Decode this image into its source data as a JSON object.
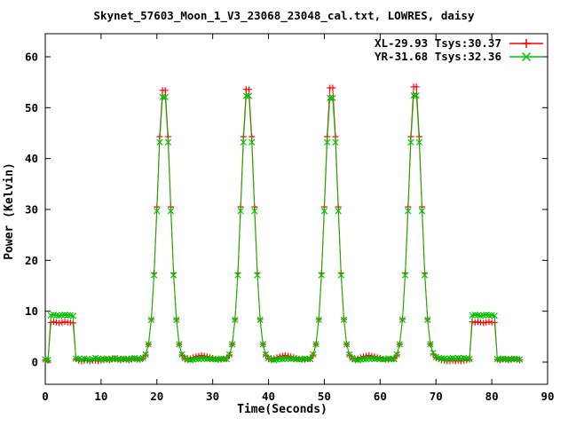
{
  "window": {
    "description": "gnuplot radio telescope calibration plot"
  },
  "chart_data": {
    "type": "line",
    "title": "Skynet_57603_Moon_1_V3_23068_23048_cal.txt, LOWRES, daisy",
    "xlabel": "Time(Seconds)",
    "ylabel": "Power (Kelvin)",
    "xlim": [
      0,
      90
    ],
    "ylim": [
      -4.36,
      64.53
    ],
    "xticks": [
      0,
      10,
      20,
      30,
      40,
      50,
      60,
      70,
      80,
      90
    ],
    "yticks": [
      0,
      10,
      20,
      30,
      40,
      50,
      60
    ],
    "grid": false,
    "legend_position": "top-right-inside",
    "background_color": "#ffffff",
    "axis_color": "#000000",
    "t_start": 0.0,
    "t_step": 0.5,
    "series": [
      {
        "name": "XL-29.93 Tsys:30.37",
        "color": "#ff0000",
        "marker": "plus",
        "values": [
          0.4,
          0.3,
          7.8,
          7.9,
          7.8,
          7.7,
          7.8,
          7.9,
          7.8,
          7.8,
          7.7,
          0.6,
          0.3,
          0.2,
          0.3,
          0.3,
          0.2,
          0.3,
          0.3,
          0.2,
          0.3,
          0.4,
          0.5,
          0.4,
          0.6,
          0.7,
          0.5,
          0.4,
          0.6,
          0.5,
          0.4,
          0.6,
          0.7,
          0.5,
          0.5,
          0.7,
          1.4,
          3.5,
          8.4,
          17.5,
          30.5,
          44.3,
          53.4,
          53.4,
          44.3,
          30.5,
          17.5,
          8.4,
          3.5,
          1.4,
          0.7,
          0.6,
          0.7,
          0.9,
          1.1,
          1.2,
          1.3,
          1.2,
          1.1,
          0.9,
          0.8,
          0.6,
          0.5,
          0.5,
          0.6,
          0.7,
          1.4,
          3.5,
          8.4,
          17.5,
          30.5,
          44.3,
          53.6,
          53.6,
          44.3,
          30.5,
          17.5,
          8.4,
          3.5,
          1.4,
          0.7,
          0.6,
          0.7,
          0.9,
          1.1,
          1.2,
          1.3,
          1.2,
          1.1,
          0.9,
          0.8,
          0.6,
          0.5,
          0.5,
          0.6,
          0.7,
          1.4,
          3.5,
          8.4,
          17.5,
          30.5,
          44.3,
          53.9,
          53.9,
          44.3,
          30.5,
          17.5,
          8.4,
          3.5,
          1.4,
          0.7,
          0.6,
          0.7,
          0.9,
          1.1,
          1.2,
          1.3,
          1.2,
          1.1,
          0.9,
          0.8,
          0.6,
          0.5,
          0.5,
          0.6,
          0.7,
          1.4,
          3.5,
          8.4,
          17.5,
          30.5,
          44.3,
          54.1,
          54.1,
          44.3,
          30.5,
          17.5,
          8.4,
          3.5,
          1.6,
          0.9,
          0.6,
          0.4,
          0.3,
          0.2,
          0.2,
          0.3,
          0.2,
          0.3,
          0.2,
          0.3,
          0.4,
          0.5,
          7.9,
          7.8,
          7.9,
          7.8,
          7.7,
          7.8,
          7.9,
          7.8,
          7.8,
          0.5,
          0.4,
          0.6,
          0.5,
          0.4,
          0.5,
          0.6,
          0.5,
          0.4
        ]
      },
      {
        "name": "YR-31.68 Tsys:32.36",
        "color": "#00c000",
        "marker": "cross",
        "values": [
          0.5,
          0.4,
          9.2,
          9.3,
          9.2,
          9.1,
          9.2,
          9.3,
          9.2,
          9.2,
          9.1,
          0.7,
          0.6,
          0.5,
          0.7,
          0.6,
          0.4,
          0.6,
          0.8,
          0.7,
          0.5,
          0.6,
          0.7,
          0.5,
          0.6,
          0.8,
          0.6,
          0.5,
          0.7,
          0.6,
          0.5,
          0.7,
          0.8,
          0.6,
          0.6,
          0.8,
          1.5,
          3.5,
          8.3,
          17.1,
          29.7,
          43.2,
          52.1,
          52.1,
          43.2,
          29.7,
          17.1,
          8.3,
          3.5,
          1.5,
          0.8,
          0.5,
          0.4,
          0.5,
          0.6,
          0.6,
          0.7,
          0.7,
          0.6,
          0.7,
          0.6,
          0.5,
          0.6,
          0.7,
          0.6,
          0.6,
          1.5,
          3.5,
          8.3,
          17.1,
          29.7,
          43.2,
          52.3,
          52.3,
          43.2,
          29.7,
          17.1,
          8.3,
          3.5,
          1.5,
          0.8,
          0.5,
          0.4,
          0.5,
          0.6,
          0.6,
          0.7,
          0.7,
          0.6,
          0.7,
          0.6,
          0.5,
          0.6,
          0.7,
          0.6,
          0.6,
          1.5,
          3.5,
          8.3,
          17.1,
          29.7,
          43.2,
          51.9,
          51.9,
          43.2,
          29.7,
          17.1,
          8.3,
          3.5,
          1.5,
          0.8,
          0.5,
          0.4,
          0.5,
          0.6,
          0.6,
          0.7,
          0.7,
          0.6,
          0.7,
          0.6,
          0.5,
          0.6,
          0.7,
          0.6,
          0.6,
          1.5,
          3.5,
          8.3,
          17.1,
          29.7,
          43.2,
          52.4,
          52.4,
          43.2,
          29.7,
          17.1,
          8.3,
          3.5,
          1.8,
          1.0,
          0.8,
          0.7,
          0.7,
          0.6,
          0.7,
          0.8,
          0.7,
          0.8,
          0.7,
          0.8,
          0.7,
          0.6,
          9.2,
          9.3,
          9.2,
          9.1,
          9.2,
          9.3,
          9.2,
          9.2,
          9.1,
          0.6,
          0.5,
          0.7,
          0.6,
          0.5,
          0.6,
          0.7,
          0.6,
          0.5
        ]
      }
    ]
  }
}
